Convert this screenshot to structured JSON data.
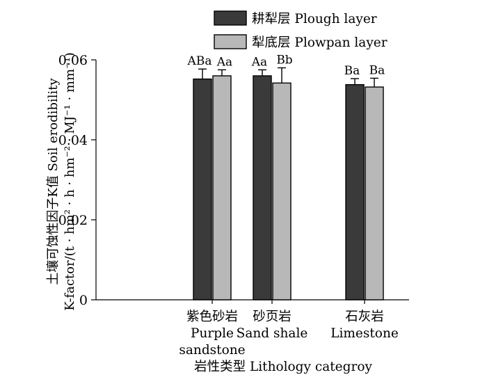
{
  "chart_data": {
    "type": "bar",
    "title": "",
    "categories": [
      [
        "紫色砂岩",
        "Purple",
        "sandstone"
      ],
      [
        "砂页岩",
        "Sand shale"
      ],
      [
        "石灰岩",
        "Limestone"
      ]
    ],
    "series": [
      {
        "name": "耕犁层 Plough layer",
        "color": "#3a3a3a",
        "values": [
          0.0552,
          0.056,
          0.0538
        ],
        "errors": [
          0.0025,
          0.0015,
          0.0015
        ],
        "labels": [
          "ABa",
          "Aa",
          "Ba"
        ]
      },
      {
        "name": "犁底层 Plowpan layer",
        "color": "#b8b8b8",
        "values": [
          0.056,
          0.0542,
          0.0532
        ],
        "errors": [
          0.0015,
          0.0038,
          0.0022
        ],
        "labels": [
          "Aa",
          "Bb",
          "Ba"
        ]
      }
    ],
    "ylim": [
      0,
      0.06
    ],
    "yticks": [
      "0",
      "0.02",
      "0.04",
      "0.06"
    ],
    "ylabel_lines": [
      "土壤可蚀性因子K值 Soil erodibility",
      "K-factor/(t · hm² · h · hm⁻² · MJ⁻¹ · mm⁻¹)"
    ],
    "xlabel": "岩性类型 Lithology categroy",
    "legend_position": "top-center",
    "grid": false
  }
}
